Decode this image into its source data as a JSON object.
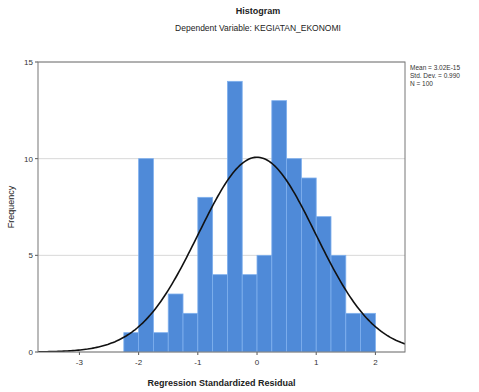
{
  "chart_data": {
    "type": "histogram",
    "title": "Histogram",
    "subtitle": "Dependent Variable: KEGIATAN_EKONOMI",
    "x_label": "Regression Standardized Residual",
    "y_label": "Frequency",
    "bins": [
      -2.25,
      -2.0,
      -1.75,
      -1.5,
      -1.25,
      -1.0,
      -0.75,
      -0.5,
      -0.25,
      0.0,
      0.25,
      0.5,
      0.75,
      1.0,
      1.25,
      1.5,
      1.75,
      2.0
    ],
    "values": [
      1,
      10,
      1,
      3,
      2,
      8,
      4,
      14,
      4,
      5,
      13,
      10,
      9,
      7,
      5,
      2,
      2
    ],
    "color": "#4f8ad8",
    "xlim": [
      -3.7,
      2.5
    ],
    "xticks": [
      -3,
      -2,
      -1,
      0,
      1,
      2
    ],
    "ylim": [
      0,
      15
    ],
    "yticks": [
      0,
      5,
      10,
      15
    ],
    "grid": true,
    "normal_curve": {
      "mean": 3.02e-15,
      "std_dev": 0.99,
      "n": 100
    },
    "stats_labels": [
      "Mean = 3.02E-15",
      "Std. Dev. = 0.990",
      "N = 100"
    ]
  }
}
